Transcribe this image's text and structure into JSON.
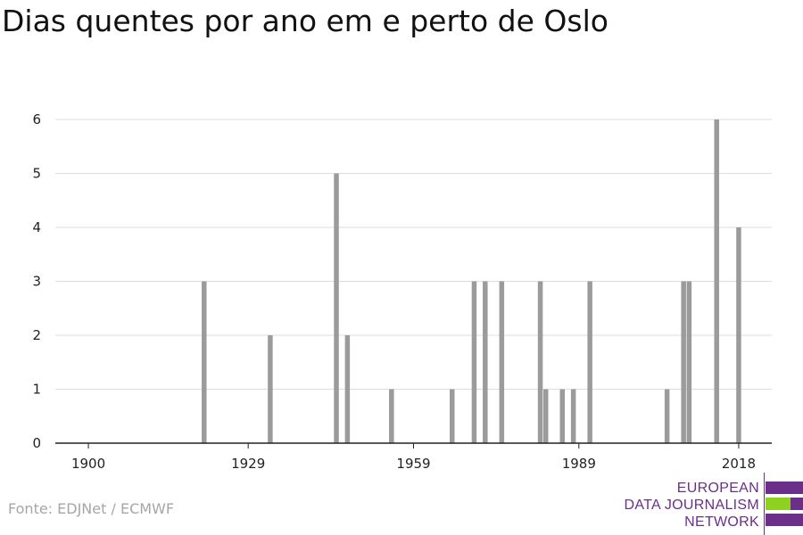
{
  "title": "Dias quentes por ano em e perto de Oslo",
  "source": "Fonte: EDJNet / ECMWF",
  "logo": {
    "lines": [
      "EUROPEAN",
      "DATA JOURNALISM",
      "NETWORK"
    ],
    "colors": {
      "purple": "#6b2f8a",
      "green": "#8ed11f"
    }
  },
  "colors": {
    "bar": "#9b9b9b",
    "grid": "#dddddd",
    "axis": "#222222"
  },
  "chart_data": {
    "type": "bar",
    "title": "Dias quentes por ano em e perto de Oslo",
    "xlabel": "",
    "ylabel": "",
    "xlim": [
      1894,
      2024
    ],
    "ylim": [
      0,
      6
    ],
    "x_ticks": [
      1900,
      1929,
      1959,
      1989,
      2018
    ],
    "y_ticks": [
      0,
      1,
      2,
      3,
      4,
      5,
      6
    ],
    "grid": true,
    "legend": "none",
    "x": [
      1921,
      1933,
      1945,
      1947,
      1955,
      1966,
      1970,
      1972,
      1975,
      1982,
      1983,
      1986,
      1988,
      1991,
      2005,
      2008,
      2009,
      2014,
      2018
    ],
    "values": [
      3,
      2,
      5,
      2,
      1,
      1,
      3,
      3,
      3,
      3,
      1,
      1,
      1,
      3,
      1,
      3,
      3,
      6,
      4
    ]
  }
}
